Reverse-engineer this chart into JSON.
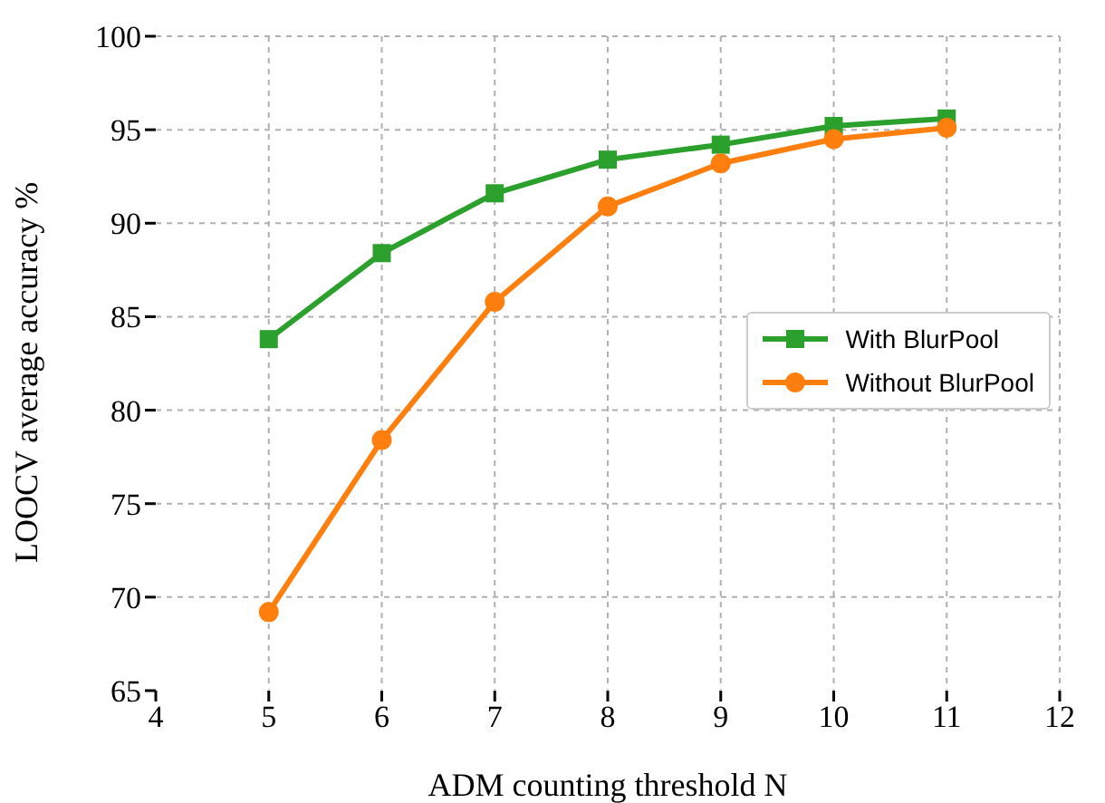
{
  "chart_data": {
    "type": "line",
    "xlabel": "ADM counting threshold N",
    "ylabel": "LOOCV average accuracy %",
    "x": [
      5,
      6,
      7,
      8,
      9,
      10,
      11
    ],
    "series": [
      {
        "name": "With BlurPool",
        "color": "#2ca02c",
        "marker": "square",
        "values": [
          83.8,
          88.4,
          91.6,
          93.4,
          94.2,
          95.2,
          95.6
        ]
      },
      {
        "name": "Without BlurPool",
        "color": "#ff7f0e",
        "marker": "circle",
        "values": [
          69.2,
          78.4,
          85.8,
          90.9,
          93.2,
          94.5,
          95.1
        ]
      }
    ],
    "xlim": [
      4,
      12
    ],
    "xticks": [
      4,
      5,
      6,
      7,
      8,
      9,
      10,
      11,
      12
    ],
    "ylim": [
      65,
      100
    ],
    "yticks": [
      65,
      70,
      75,
      80,
      85,
      90,
      95,
      100
    ],
    "grid": true,
    "legend": "right",
    "line_style": "solid"
  }
}
